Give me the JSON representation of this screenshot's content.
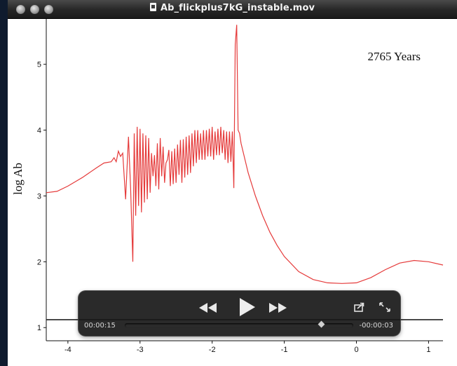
{
  "window": {
    "title": "Ab_flickplus7kG_instable.mov"
  },
  "player": {
    "elapsed": "00:00:15",
    "remaining": "-00:00:03",
    "progress": 0.86
  },
  "colors": {
    "curve": "#e53a3a",
    "axis": "#111111"
  },
  "icons": {
    "rewind": "rewind-icon",
    "play": "play-icon",
    "fast_forward": "fast-forward-icon",
    "share": "share-icon",
    "fullscreen": "fullscreen-icon"
  },
  "chart_data": {
    "type": "line",
    "annotation": "2765 Years",
    "ylabel": "log Ab",
    "xlabel": "",
    "xlim": [
      -4.3,
      1.2
    ],
    "ylim": [
      0.8,
      5.7
    ],
    "xticks": [
      -4,
      -3,
      -2,
      -1,
      0,
      1
    ],
    "yticks": [
      1,
      2,
      3,
      4,
      5
    ],
    "reference_line": 1.12,
    "series": [
      {
        "x": [
          -4.3,
          -4.15,
          -4.0,
          -3.8,
          -3.6,
          -3.5,
          -3.4,
          -3.36,
          -3.33,
          -3.3,
          -3.27,
          -3.24,
          -3.2,
          -3.16,
          -3.13,
          -3.1,
          -3.08,
          -3.06,
          -3.04,
          -3.02,
          -3.0,
          -2.98,
          -2.96,
          -2.94,
          -2.92,
          -2.9,
          -2.88,
          -2.86,
          -2.84,
          -2.82,
          -2.8,
          -2.78,
          -2.76,
          -2.74,
          -2.72,
          -2.7,
          -2.68,
          -2.66,
          -2.64,
          -2.62,
          -2.6,
          -2.58,
          -2.56,
          -2.54,
          -2.52,
          -2.5,
          -2.48,
          -2.46,
          -2.44,
          -2.42,
          -2.4,
          -2.38,
          -2.36,
          -2.34,
          -2.32,
          -2.3,
          -2.28,
          -2.26,
          -2.24,
          -2.22,
          -2.2,
          -2.18,
          -2.16,
          -2.14,
          -2.12,
          -2.1,
          -2.08,
          -2.06,
          -2.04,
          -2.02,
          -2.0,
          -1.98,
          -1.96,
          -1.94,
          -1.92,
          -1.9,
          -1.88,
          -1.86,
          -1.84,
          -1.82,
          -1.8,
          -1.78,
          -1.76,
          -1.74,
          -1.72,
          -1.7,
          -1.68,
          -1.66,
          -1.64,
          -1.62,
          -1.6,
          -1.5,
          -1.4,
          -1.3,
          -1.2,
          -1.1,
          -1.0,
          -0.8,
          -0.6,
          -0.4,
          -0.2,
          0.0,
          0.2,
          0.4,
          0.6,
          0.8,
          1.0,
          1.2
        ],
        "values": [
          3.05,
          3.07,
          3.15,
          3.28,
          3.43,
          3.5,
          3.52,
          3.58,
          3.52,
          3.68,
          3.6,
          3.65,
          2.95,
          3.9,
          3.1,
          2.0,
          3.95,
          2.7,
          4.05,
          2.85,
          4.02,
          2.75,
          3.95,
          2.9,
          3.92,
          2.95,
          3.88,
          3.05,
          3.65,
          3.3,
          3.62,
          3.15,
          3.8,
          3.1,
          3.88,
          3.3,
          3.75,
          3.2,
          3.5,
          3.55,
          3.7,
          3.15,
          3.68,
          3.18,
          3.72,
          3.2,
          3.78,
          3.32,
          3.85,
          3.2,
          3.86,
          3.28,
          3.9,
          3.32,
          3.92,
          3.35,
          3.95,
          3.45,
          4.0,
          3.5,
          4.0,
          3.55,
          3.95,
          3.55,
          4.0,
          3.55,
          4.0,
          3.6,
          4.02,
          3.6,
          4.05,
          3.55,
          3.98,
          3.62,
          4.02,
          3.62,
          4.05,
          3.65,
          4.0,
          3.55,
          3.98,
          3.5,
          3.98,
          3.52,
          3.98,
          3.12,
          5.3,
          5.6,
          4.0,
          3.95,
          3.8,
          3.35,
          3.0,
          2.7,
          2.45,
          2.25,
          2.08,
          1.85,
          1.73,
          1.68,
          1.67,
          1.68,
          1.76,
          1.88,
          1.98,
          2.02,
          2.0,
          1.95
        ]
      }
    ]
  }
}
